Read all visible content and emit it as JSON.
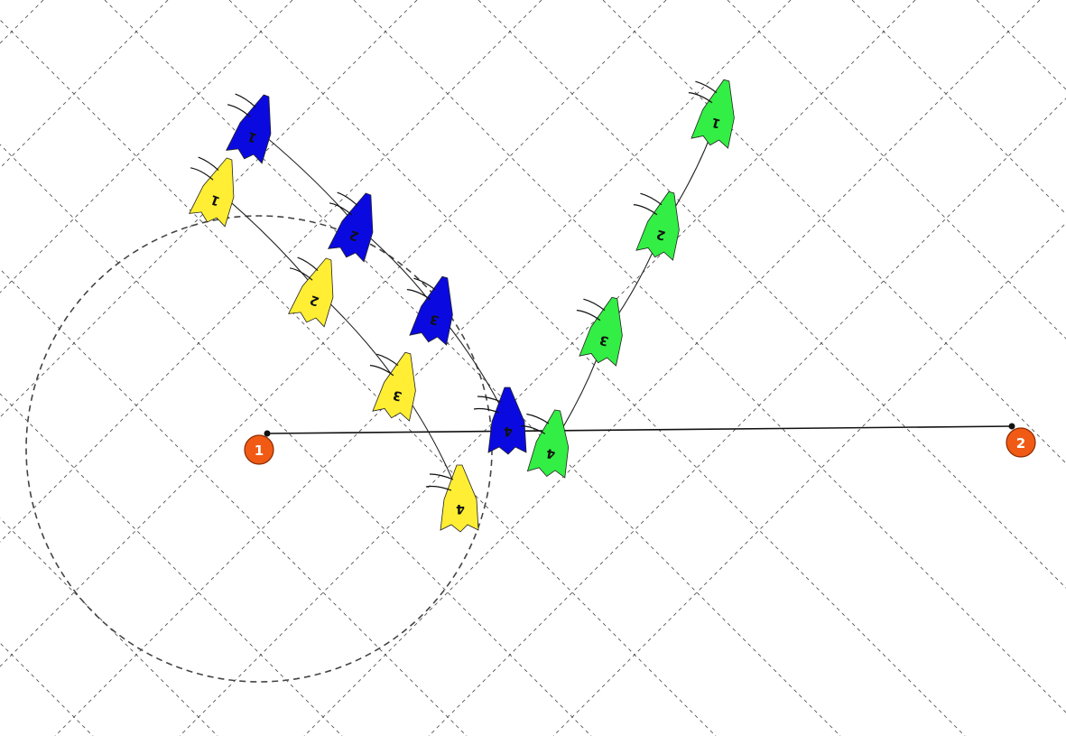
{
  "colors": {
    "mark": "#f05a14",
    "yellow": "#ffee33",
    "blue": "#0a0ae0",
    "green": "#33ee44"
  },
  "marks": [
    {
      "id": "mark-1",
      "label": "1"
    },
    {
      "id": "mark-2",
      "label": "2"
    }
  ],
  "boats": [
    {
      "fleet": "yellow",
      "color": "#ffee33",
      "labels": [
        "1",
        "2",
        "3",
        "4"
      ]
    },
    {
      "fleet": "blue",
      "color": "#0a0ae0",
      "labels": [
        "1",
        "2",
        "3",
        "4"
      ]
    },
    {
      "fleet": "green",
      "color": "#33ee44",
      "labels": [
        "1",
        "2",
        "3",
        "4"
      ]
    }
  ]
}
